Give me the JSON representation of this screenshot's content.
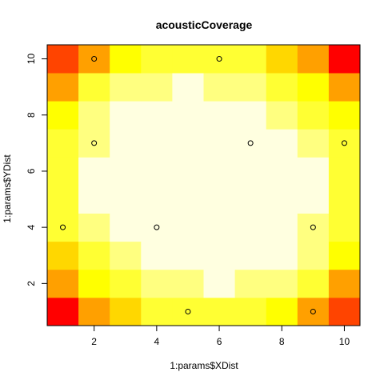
{
  "chart_data": {
    "type": "heatmap",
    "title": "acousticCoverage",
    "xlabel": "1:params$XDist",
    "ylabel": "1:params$YDist",
    "x": [
      1,
      2,
      3,
      4,
      5,
      6,
      7,
      8,
      9,
      10
    ],
    "y": [
      1,
      2,
      3,
      4,
      5,
      6,
      7,
      8,
      9,
      10
    ],
    "xlim": [
      0.5,
      10.5
    ],
    "ylim": [
      0.5,
      10.5
    ],
    "xticks": [
      2,
      4,
      6,
      8,
      10
    ],
    "yticks": [
      2,
      4,
      6,
      8,
      10
    ],
    "color_scale": [
      "#FF0000",
      "#FF4400",
      "#FFA000",
      "#FFD700",
      "#FFFF00",
      "#FFFF33",
      "#FFFF80",
      "#FFFFE0"
    ],
    "color_index_rows_bottom_to_top": [
      [
        0,
        2,
        3,
        5,
        5,
        5,
        5,
        4,
        2,
        1
      ],
      [
        2,
        4,
        5,
        6,
        6,
        7,
        6,
        6,
        5,
        2
      ],
      [
        3,
        5,
        6,
        7,
        7,
        7,
        7,
        7,
        6,
        4
      ],
      [
        5,
        6,
        7,
        7,
        7,
        7,
        7,
        7,
        6,
        5
      ],
      [
        5,
        7,
        7,
        7,
        7,
        7,
        7,
        7,
        7,
        5
      ],
      [
        5,
        7,
        7,
        7,
        7,
        7,
        7,
        7,
        7,
        5
      ],
      [
        5,
        6,
        7,
        7,
        7,
        7,
        7,
        7,
        6,
        5
      ],
      [
        4,
        6,
        7,
        7,
        7,
        7,
        7,
        6,
        5,
        4
      ],
      [
        2,
        5,
        6,
        6,
        7,
        6,
        6,
        5,
        4,
        2
      ],
      [
        1,
        2,
        4,
        5,
        5,
        5,
        5,
        3,
        2,
        0
      ]
    ],
    "points": [
      {
        "x": 2,
        "y": 10
      },
      {
        "x": 6,
        "y": 10
      },
      {
        "x": 2,
        "y": 7
      },
      {
        "x": 7,
        "y": 7
      },
      {
        "x": 10,
        "y": 7
      },
      {
        "x": 1,
        "y": 4
      },
      {
        "x": 4,
        "y": 4
      },
      {
        "x": 9,
        "y": 4
      },
      {
        "x": 5,
        "y": 1
      },
      {
        "x": 9,
        "y": 1
      }
    ],
    "grid": false
  }
}
